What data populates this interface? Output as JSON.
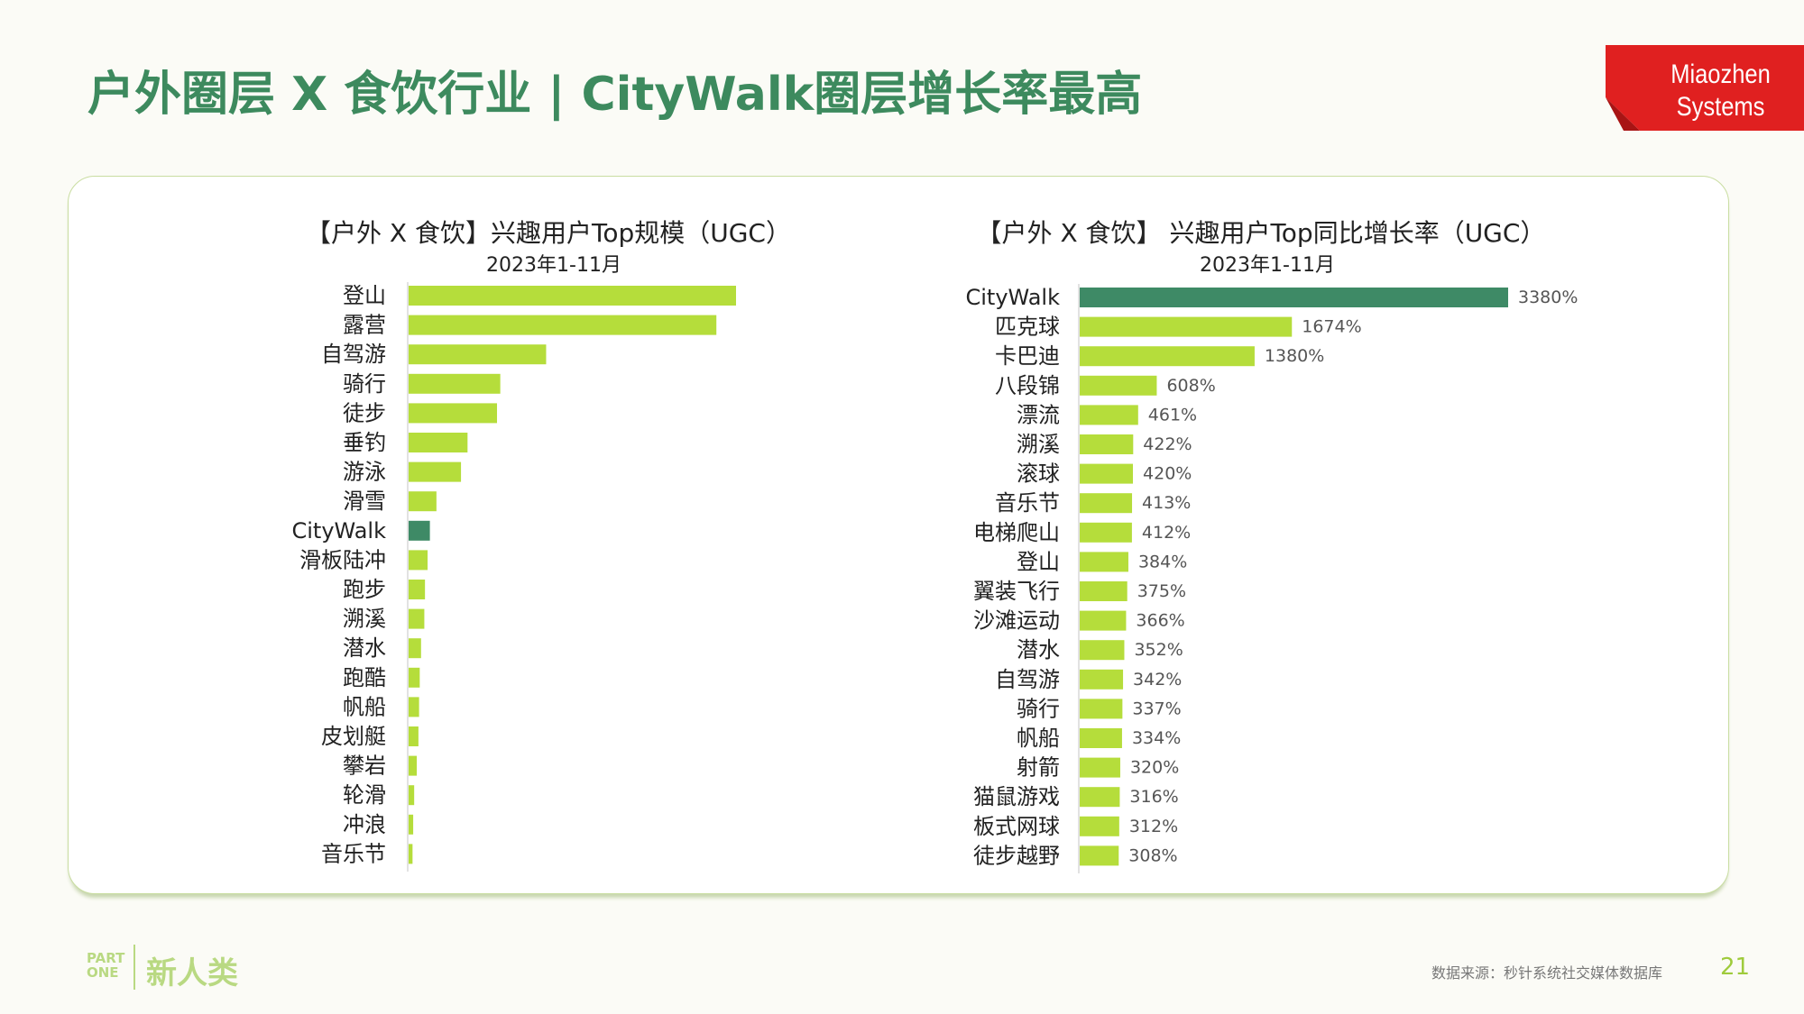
{
  "page": {
    "title": "户外圈层 X 食饮行业 | CityWalk圈层增长率最高",
    "logo_line1": "Miaozhen",
    "logo_line2": "Systems",
    "footer": {
      "part": "PART ONE",
      "section": "新人类",
      "source": "数据来源：秒针系统社交媒体数据库",
      "page_number": "21"
    }
  },
  "colors": {
    "accent": "#b5dd3b",
    "highlight": "#3e8a66",
    "title": "#3d8a5e",
    "logo_red": "#e02020"
  },
  "chart_data": [
    {
      "type": "bar",
      "orientation": "horizontal",
      "title": "【户外 X 食饮】兴趣用户Top规模（UGC）",
      "subtitle": "2023年1-11月",
      "highlight": "CityWalk",
      "categories": [
        "登山",
        "露营",
        "自驾游",
        "骑行",
        "徒步",
        "垂钓",
        "游泳",
        "滑雪",
        "CityWalk",
        "滑板陆冲",
        "跑步",
        "溯溪",
        "潜水",
        "跑酷",
        "帆船",
        "皮划艇",
        "攀岩",
        "轮滑",
        "冲浪",
        "音乐节"
      ],
      "values": [
        100,
        94,
        42,
        28,
        27,
        18,
        16,
        8.5,
        6.5,
        5.8,
        5.0,
        4.8,
        3.8,
        3.4,
        3.2,
        3.0,
        2.5,
        1.7,
        1.4,
        1.2
      ],
      "xlim": [
        0,
        100
      ]
    },
    {
      "type": "bar",
      "orientation": "horizontal",
      "title": "【户外 X 食饮】 兴趣用户Top同比增长率（UGC）",
      "subtitle": "2023年1-11月",
      "highlight": "CityWalk",
      "unit": "%",
      "categories": [
        "CityWalk",
        "匹克球",
        "卡巴迪",
        "八段锦",
        "漂流",
        "溯溪",
        "滚球",
        "音乐节",
        "电梯爬山",
        "登山",
        "翼装飞行",
        "沙滩运动",
        "潜水",
        "自驾游",
        "骑行",
        "帆船",
        "射箭",
        "猫鼠游戏",
        "板式网球",
        "徒步越野"
      ],
      "values": [
        3380,
        1674,
        1380,
        608,
        461,
        422,
        420,
        413,
        412,
        384,
        375,
        366,
        352,
        342,
        337,
        334,
        320,
        316,
        312,
        308
      ],
      "value_labels": [
        "3380%",
        "1674%",
        "1380%",
        "608%",
        "461%",
        "422%",
        "420%",
        "413%",
        "412%",
        "384%",
        "375%",
        "366%",
        "352%",
        "342%",
        "337%",
        "334%",
        "320%",
        "316%",
        "312%",
        "308%"
      ],
      "xlim": [
        0,
        3380
      ]
    }
  ]
}
